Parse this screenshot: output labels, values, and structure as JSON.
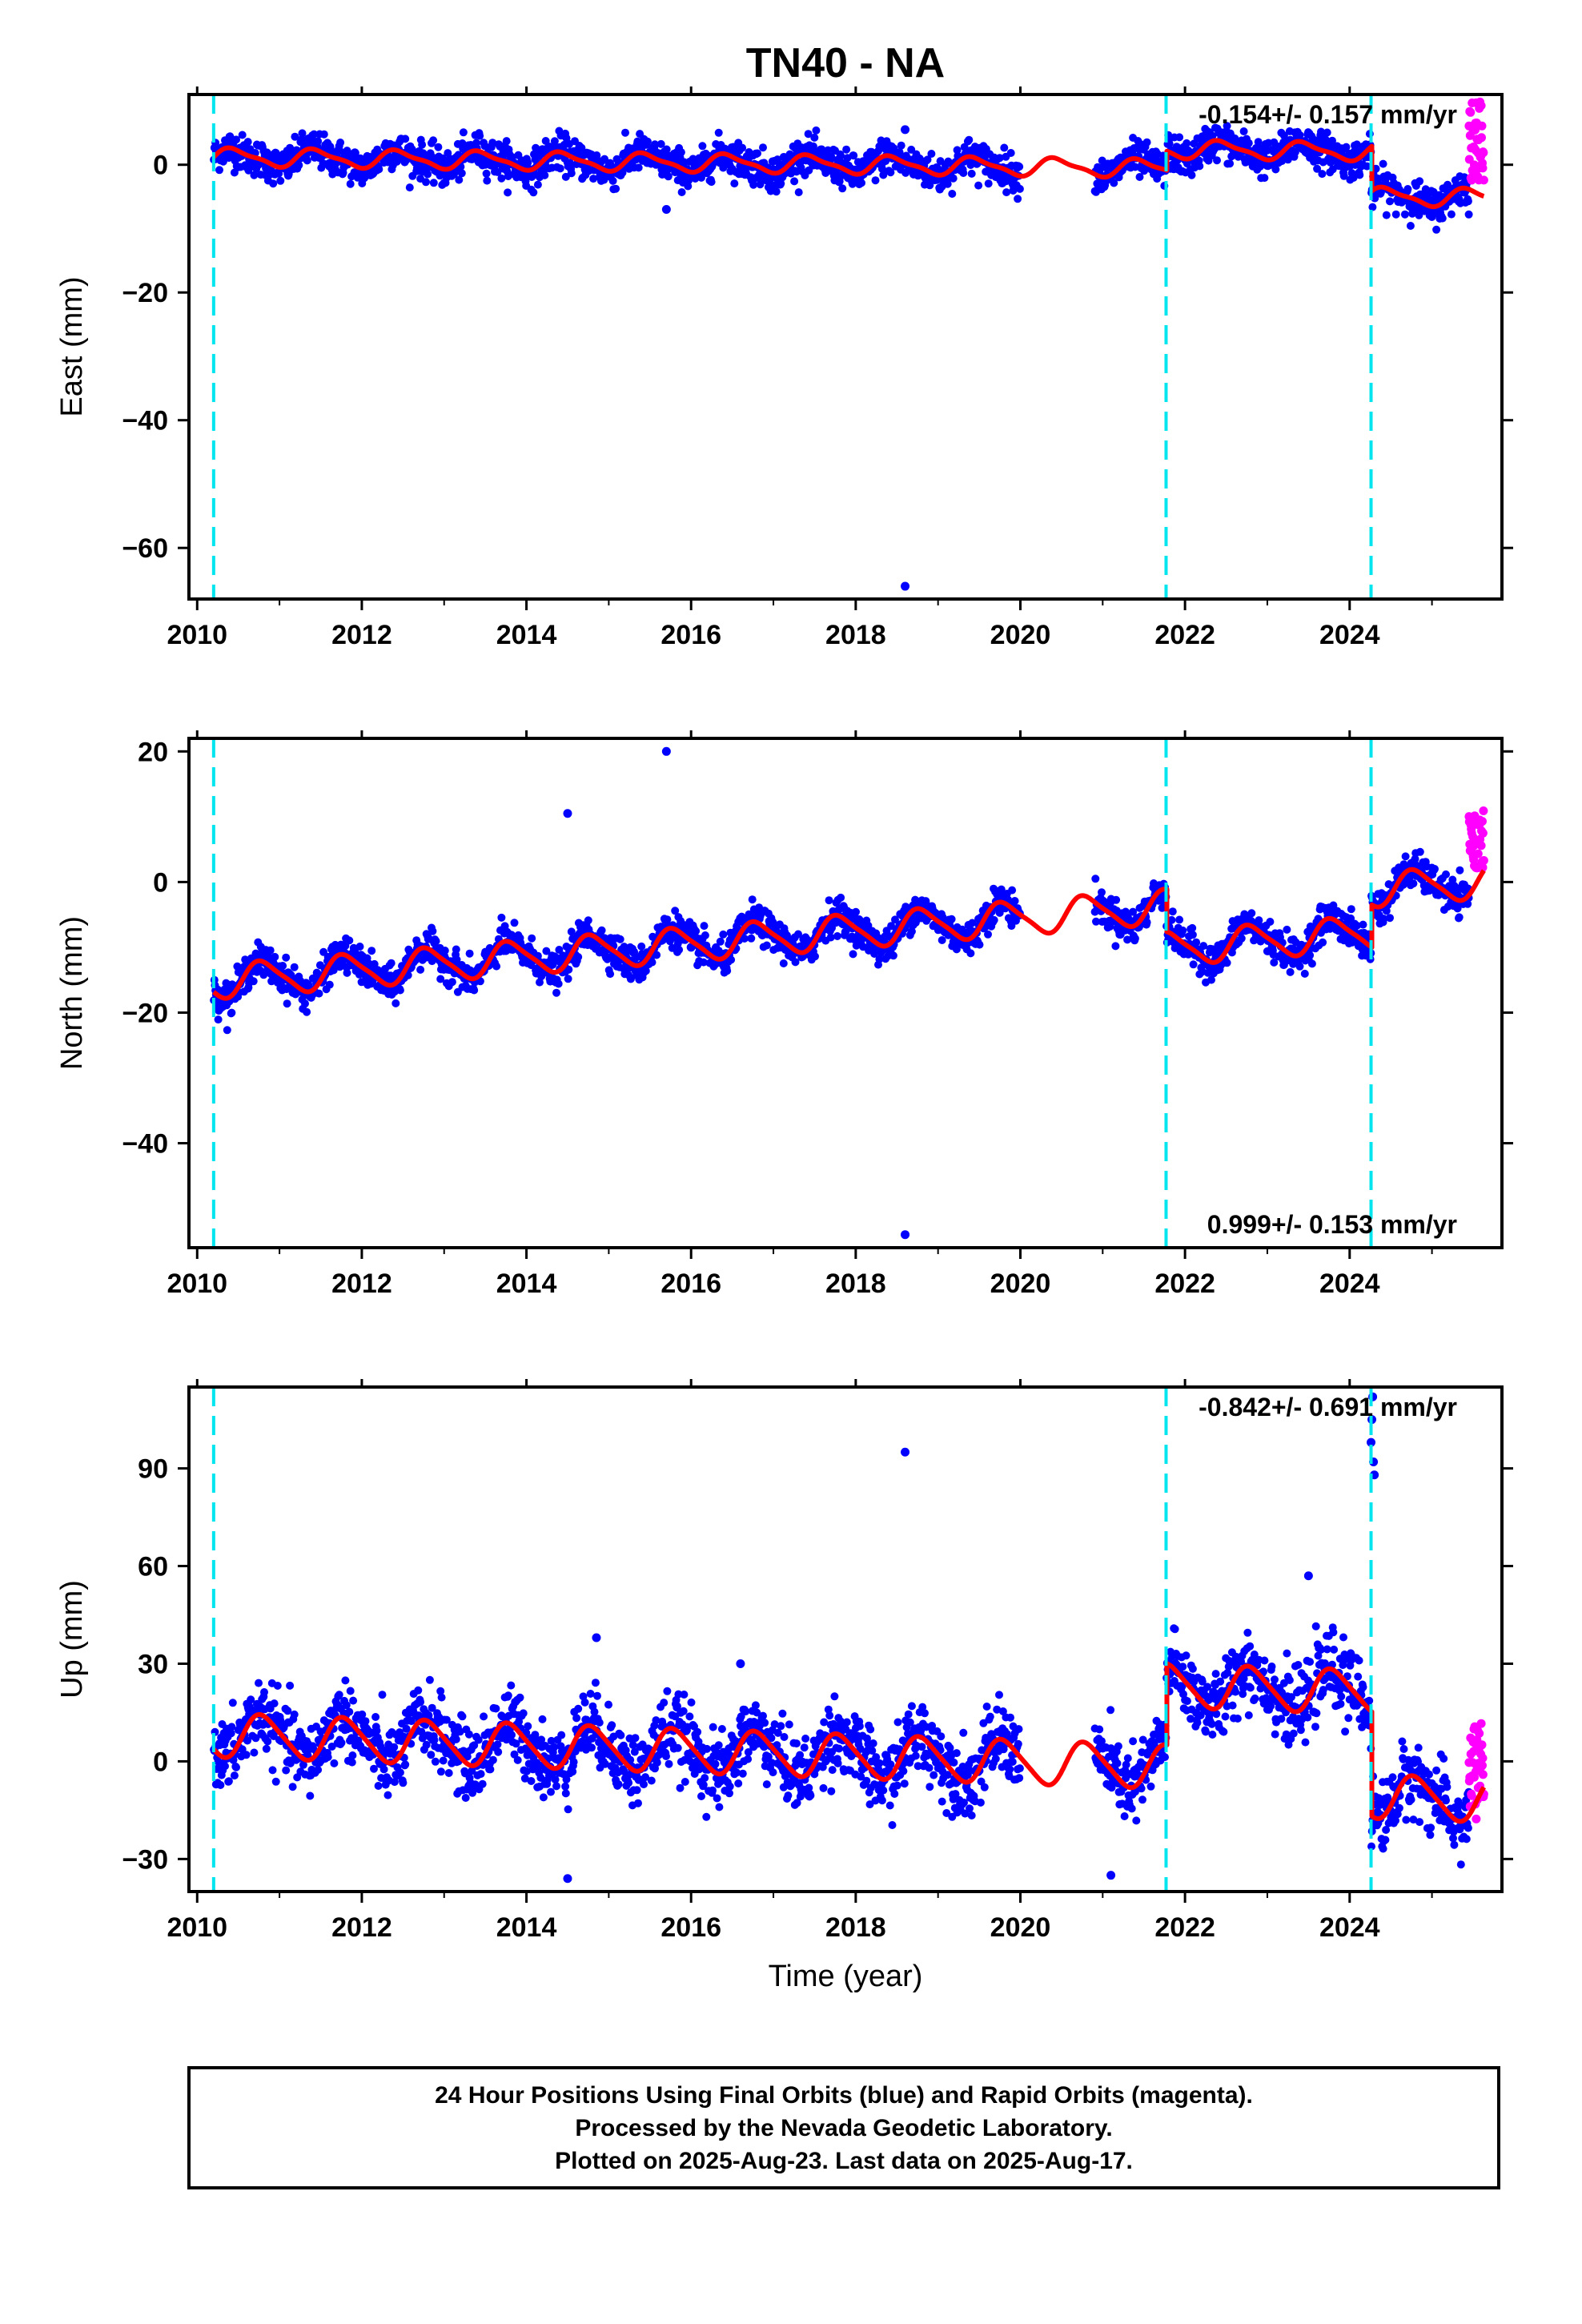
{
  "title": "TN40 - NA",
  "colors": {
    "final_orbits": "#0000ff",
    "rapid_orbits": "#ff00ff",
    "model": "#ff0000",
    "steps": "#00e5ee",
    "frame": "#000000"
  },
  "chart_data": [
    {
      "type": "scatter",
      "id": "east",
      "ylabel": "East (mm)",
      "xlabel": "",
      "xlim": [
        2009.9,
        2025.85
      ],
      "ylim": [
        -68,
        11
      ],
      "xticks": [
        2010,
        2012,
        2014,
        2016,
        2018,
        2020,
        2022,
        2024
      ],
      "yticks": [
        0,
        -20,
        -40,
        -60
      ],
      "grid": false,
      "rate_text": "-0.154+/- 0.157 mm/yr",
      "rate_position": "top-right",
      "step_epochs": [
        2010.2,
        2021.77,
        2024.26
      ],
      "data_gap": [
        2020.0,
        2020.9
      ],
      "model": {
        "offsets": [
          0,
          0,
          3.0,
          -4.0
        ],
        "intercept": 0.0,
        "velocity": -0.154,
        "annual_amplitude": 1.3,
        "annual_phase": 0.2,
        "semiannual_amplitude": 0.4,
        "scatter_sigma": 1.4
      },
      "outliers": [
        {
          "x": 2018.6,
          "y": -66
        },
        {
          "x": 2018.6,
          "y": 5.5
        },
        {
          "x": 2015.7,
          "y": -7
        }
      ],
      "rapid": {
        "x_range": [
          2025.45,
          2025.63
        ],
        "y_range": [
          -3,
          10
        ]
      }
    },
    {
      "type": "scatter",
      "id": "north",
      "ylabel": "North (mm)",
      "xlabel": "",
      "xlim": [
        2009.9,
        2025.85
      ],
      "ylim": [
        -56,
        22
      ],
      "xticks": [
        2010,
        2012,
        2014,
        2016,
        2018,
        2020,
        2022,
        2024
      ],
      "yticks": [
        20,
        0,
        -20,
        -40
      ],
      "grid": false,
      "rate_text": "0.999+/- 0.153 mm/yr",
      "rate_position": "bottom-right",
      "step_epochs": [
        2010.2,
        2021.77,
        2024.26
      ],
      "data_gap": [
        2020.0,
        2020.9
      ],
      "model": {
        "offsets": [
          0,
          0,
          -6.5,
          0
        ],
        "intercept": -7.5,
        "velocity": 0.999,
        "annual_amplitude": 2.5,
        "annual_phase": 0.55,
        "semiannual_amplitude": 0.5,
        "scatter_sigma": 1.3
      },
      "outliers": [
        {
          "x": 2015.7,
          "y": 20
        },
        {
          "x": 2014.5,
          "y": 10.5
        },
        {
          "x": 2018.6,
          "y": -54
        },
        {
          "x": 2016.0,
          "y": -10
        }
      ],
      "rapid": {
        "x_range": [
          2025.45,
          2025.63
        ],
        "y_range": [
          2,
          11
        ]
      }
    },
    {
      "type": "scatter",
      "id": "up",
      "ylabel": "Up (mm)",
      "xlabel": "Time (year)",
      "xlim": [
        2009.9,
        2025.85
      ],
      "ylim": [
        -40,
        115
      ],
      "xticks": [
        2010,
        2012,
        2014,
        2016,
        2018,
        2020,
        2022,
        2024
      ],
      "yticks": [
        90,
        60,
        30,
        0,
        -30
      ],
      "grid": false,
      "rate_text": "-0.842+/- 0.691 mm/yr",
      "rate_position": "top-right",
      "step_epochs": [
        2010.2,
        2021.77,
        2024.26
      ],
      "data_gap": [
        2020.0,
        2020.9
      ],
      "model": {
        "offsets": [
          0,
          0,
          25,
          -7
        ],
        "intercept": 1.5,
        "velocity": -0.842,
        "annual_amplitude": 6.5,
        "annual_phase": 0.55,
        "semiannual_amplitude": 1.0,
        "scatter_sigma": 5.5
      },
      "outliers": [
        {
          "x": 2018.6,
          "y": 95
        },
        {
          "x": 2023.5,
          "y": 57
        },
        {
          "x": 2014.85,
          "y": 38
        },
        {
          "x": 2016.6,
          "y": 30
        },
        {
          "x": 2014.5,
          "y": -36
        },
        {
          "x": 2021.1,
          "y": -35
        },
        {
          "x": 2024.28,
          "y": 112
        },
        {
          "x": 2024.27,
          "y": 105
        },
        {
          "x": 2024.26,
          "y": 98
        },
        {
          "x": 2024.29,
          "y": 92
        },
        {
          "x": 2024.3,
          "y": 88
        }
      ],
      "rapid": {
        "x_range": [
          2025.45,
          2025.63
        ],
        "y_range": [
          -18,
          12
        ]
      }
    }
  ],
  "footer": {
    "line1": "24 Hour Positions Using Final Orbits (blue) and Rapid Orbits (magenta).",
    "line2": "Processed by the Nevada Geodetic Laboratory.",
    "line3": "Plotted on 2025-Aug-23. Last data on 2025-Aug-17."
  }
}
